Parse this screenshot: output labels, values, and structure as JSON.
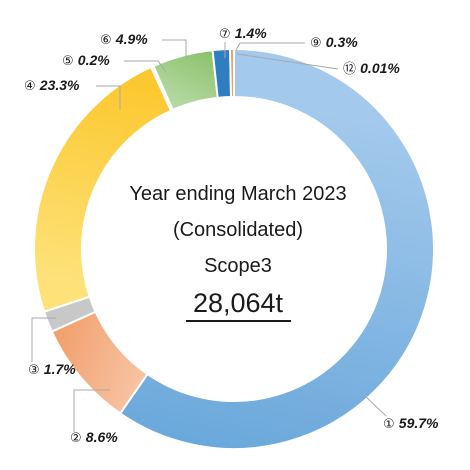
{
  "chart_data": {
    "type": "pie",
    "variant": "donut",
    "title": "Year ending March 2023",
    "subtitle": "(Consolidated)",
    "scope": "Scope3",
    "total": "28,064t",
    "start": "top, clockwise",
    "slices": [
      {
        "marker": "①",
        "label": "59.7%",
        "value": 59.7,
        "color": "#6aa8db"
      },
      {
        "marker": "②",
        "label": "8.6%",
        "value": 8.6,
        "color": "#f2a06e"
      },
      {
        "marker": "③",
        "label": "1.7%",
        "value": 1.7,
        "color": "#c8c8c8"
      },
      {
        "marker": "④",
        "label": "23.3%",
        "value": 23.3,
        "color": "#fcc82f"
      },
      {
        "marker": "⑤",
        "label": "0.2%",
        "value": 0.2,
        "color": "#e6e6e6"
      },
      {
        "marker": "⑥",
        "label": "4.9%",
        "value": 4.9,
        "color": "#8cc26c"
      },
      {
        "marker": "⑦",
        "label": "1.4%",
        "value": 1.4,
        "color": "#2f7ec2"
      },
      {
        "marker": "⑨",
        "label": "0.3%",
        "value": 0.3,
        "color": "#f0873a"
      },
      {
        "marker": "⑫",
        "label": "0.01%",
        "value": 0.01,
        "color": "#2a5fa8"
      }
    ]
  }
}
